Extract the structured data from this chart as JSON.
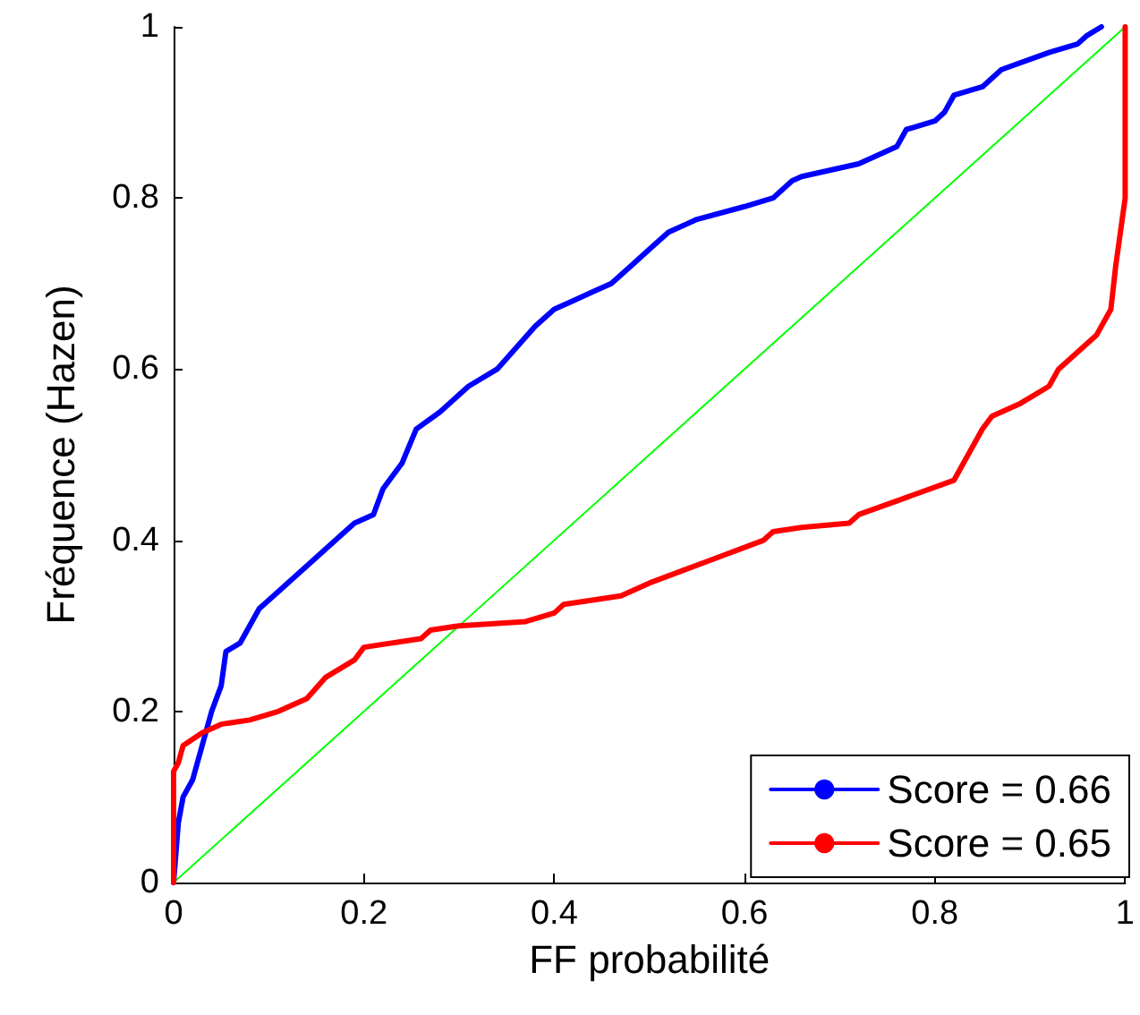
{
  "chart_data": {
    "type": "line",
    "xlabel": "FF probabilité",
    "ylabel": "Fréquence (Hazen)",
    "xlim": [
      0,
      1
    ],
    "ylim": [
      0,
      1
    ],
    "xticks": [
      0,
      0.2,
      0.4,
      0.6,
      0.8,
      1
    ],
    "yticks": [
      0,
      0.2,
      0.4,
      0.6,
      0.8,
      1
    ],
    "grid": false,
    "legend": "bottom right",
    "marker": "none",
    "line_style": "solid",
    "series": [
      {
        "name": "Score = 0.66",
        "color": "#0000ff",
        "x": [
          0,
          0.005,
          0.01,
          0.02,
          0.03,
          0.04,
          0.05,
          0.055,
          0.07,
          0.09,
          0.11,
          0.15,
          0.19,
          0.21,
          0.22,
          0.24,
          0.255,
          0.28,
          0.3,
          0.31,
          0.34,
          0.38,
          0.4,
          0.42,
          0.44,
          0.46,
          0.48,
          0.5,
          0.52,
          0.55,
          0.6,
          0.63,
          0.65,
          0.66,
          0.72,
          0.76,
          0.77,
          0.8,
          0.81,
          0.82,
          0.85,
          0.87,
          0.92,
          0.95,
          0.96,
          0.975
        ],
        "values": [
          0,
          0.07,
          0.1,
          0.12,
          0.16,
          0.2,
          0.23,
          0.27,
          0.28,
          0.32,
          0.34,
          0.38,
          0.42,
          0.43,
          0.46,
          0.49,
          0.53,
          0.55,
          0.57,
          0.58,
          0.6,
          0.65,
          0.67,
          0.68,
          0.69,
          0.7,
          0.72,
          0.74,
          0.76,
          0.775,
          0.79,
          0.8,
          0.82,
          0.825,
          0.84,
          0.86,
          0.88,
          0.89,
          0.9,
          0.92,
          0.93,
          0.95,
          0.97,
          0.98,
          0.99,
          1
        ]
      },
      {
        "name": "Score = 0.65",
        "color": "#ff0000",
        "x": [
          0,
          0,
          0.005,
          0.01,
          0.03,
          0.05,
          0.08,
          0.11,
          0.14,
          0.16,
          0.19,
          0.2,
          0.26,
          0.27,
          0.3,
          0.37,
          0.4,
          0.41,
          0.47,
          0.5,
          0.56,
          0.62,
          0.63,
          0.66,
          0.71,
          0.72,
          0.82,
          0.83,
          0.85,
          0.86,
          0.88,
          0.89,
          0.92,
          0.93,
          0.97,
          0.985,
          0.99,
          0.995,
          1,
          1
        ],
        "values": [
          0,
          0.13,
          0.14,
          0.16,
          0.175,
          0.185,
          0.19,
          0.2,
          0.215,
          0.24,
          0.26,
          0.275,
          0.285,
          0.295,
          0.3,
          0.305,
          0.315,
          0.325,
          0.335,
          0.35,
          0.375,
          0.4,
          0.41,
          0.415,
          0.42,
          0.43,
          0.47,
          0.49,
          0.53,
          0.545,
          0.555,
          0.56,
          0.58,
          0.6,
          0.64,
          0.67,
          0.72,
          0.76,
          0.8,
          1
        ]
      },
      {
        "color": "#00ff00",
        "x": [
          0,
          1
        ],
        "values": [
          0,
          1
        ]
      }
    ]
  }
}
